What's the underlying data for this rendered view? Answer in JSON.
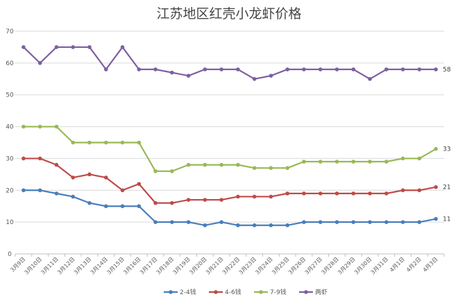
{
  "chart_data": {
    "type": "line",
    "title": "江苏地区红壳小龙虾价格",
    "xlabel": "",
    "ylabel": "",
    "ylim": [
      0,
      70
    ],
    "yticks": [
      0,
      10,
      20,
      30,
      40,
      50,
      60,
      70
    ],
    "grid": true,
    "legend_position": "bottom",
    "categories": [
      "3月9日",
      "3月10日",
      "3月11日",
      "3月12日",
      "3月13日",
      "3月14日",
      "3月15日",
      "3月16日",
      "3月17日",
      "3月18日",
      "3月19日",
      "3月20日",
      "3月21日",
      "3月22日",
      "3月23日",
      "3月24日",
      "3月25日",
      "3月26日",
      "3月27日",
      "3月28日",
      "3月29日",
      "3月30日",
      "3月31日",
      "4月1日",
      "4月2日",
      "4月3日"
    ],
    "series": [
      {
        "name": "2-4钱",
        "color": "#4a7ebb",
        "values": [
          20,
          20,
          19,
          18,
          16,
          15,
          15,
          15,
          10,
          10,
          10,
          9,
          10,
          9,
          9,
          9,
          9,
          10,
          10,
          10,
          10,
          10,
          10,
          10,
          10,
          11
        ],
        "end_label": "11"
      },
      {
        "name": "4-6钱",
        "color": "#be4b48",
        "values": [
          30,
          30,
          28,
          24,
          25,
          24,
          20,
          22,
          16,
          16,
          17,
          17,
          17,
          18,
          18,
          18,
          19,
          19,
          19,
          19,
          19,
          19,
          19,
          20,
          20,
          21
        ],
        "end_label": "21"
      },
      {
        "name": "7-9钱",
        "color": "#98b954",
        "values": [
          40,
          40,
          40,
          35,
          35,
          35,
          35,
          35,
          26,
          26,
          28,
          28,
          28,
          28,
          27,
          27,
          27,
          29,
          29,
          29,
          29,
          29,
          29,
          30,
          30,
          33
        ],
        "end_label": "33"
      },
      {
        "name": "两虾",
        "color": "#7d5fa0",
        "values": [
          65,
          60,
          65,
          65,
          65,
          58,
          65,
          58,
          58,
          57,
          56,
          58,
          58,
          58,
          55,
          56,
          58,
          58,
          58,
          58,
          58,
          55,
          58,
          58,
          58,
          58
        ],
        "end_label": "58"
      }
    ]
  }
}
